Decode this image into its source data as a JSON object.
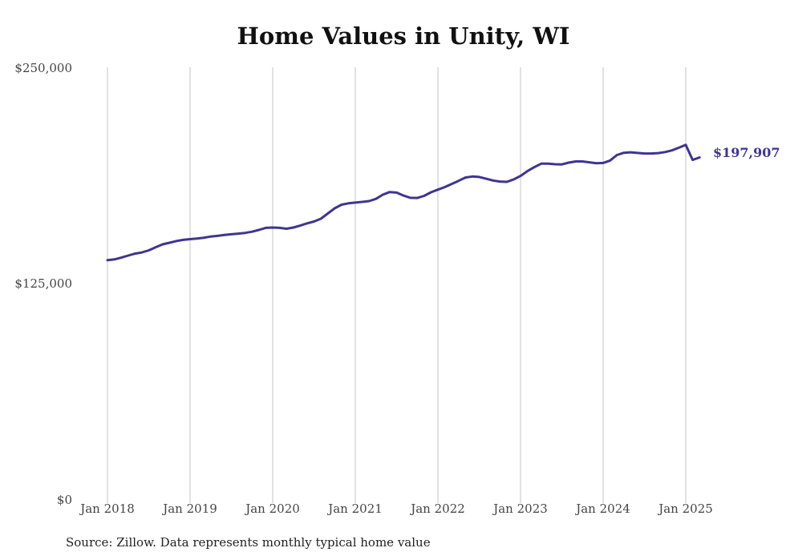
{
  "chart_data": {
    "type": "line",
    "title": "Home Values in Unity, WI",
    "y_ticks": [
      "$250,000",
      "$125,000",
      "$0"
    ],
    "x_ticks": [
      "Jan 2018",
      "Jan 2019",
      "Jan 2020",
      "Jan 2021",
      "Jan 2022",
      "Jan 2023",
      "Jan 2024",
      "Jan 2025"
    ],
    "ylim": [
      0,
      250000
    ],
    "xlim": [
      "2018-01",
      "2025-03"
    ],
    "grid": "vertical",
    "series": [
      {
        "color": "#3e3594",
        "end_label": "$197,907",
        "x": [
          "2018-01",
          "2018-02",
          "2018-03",
          "2018-04",
          "2018-05",
          "2018-06",
          "2018-07",
          "2018-08",
          "2018-09",
          "2018-10",
          "2018-11",
          "2018-12",
          "2019-01",
          "2019-02",
          "2019-03",
          "2019-04",
          "2019-05",
          "2019-06",
          "2019-07",
          "2019-08",
          "2019-09",
          "2019-10",
          "2019-11",
          "2019-12",
          "2020-01",
          "2020-02",
          "2020-03",
          "2020-04",
          "2020-05",
          "2020-06",
          "2020-07",
          "2020-08",
          "2020-09",
          "2020-10",
          "2020-11",
          "2020-12",
          "2021-01",
          "2021-02",
          "2021-03",
          "2021-04",
          "2021-05",
          "2021-06",
          "2021-07",
          "2021-08",
          "2021-09",
          "2021-10",
          "2021-11",
          "2021-12",
          "2022-01",
          "2022-02",
          "2022-03",
          "2022-04",
          "2022-05",
          "2022-06",
          "2022-07",
          "2022-08",
          "2022-09",
          "2022-10",
          "2022-11",
          "2022-12",
          "2023-01",
          "2023-02",
          "2023-03",
          "2023-04",
          "2023-05",
          "2023-06",
          "2023-07",
          "2023-08",
          "2023-09",
          "2023-10",
          "2023-11",
          "2023-12",
          "2024-01",
          "2024-02",
          "2024-03",
          "2024-04",
          "2024-05",
          "2024-06",
          "2024-07",
          "2024-08",
          "2024-09",
          "2024-10",
          "2024-11",
          "2024-12",
          "2025-01",
          "2025-02",
          "2025-03"
        ],
        "values": [
          138500,
          139000,
          140000,
          141200,
          142300,
          143000,
          144200,
          146000,
          147700,
          148600,
          149600,
          150300,
          150700,
          151000,
          151500,
          152200,
          152600,
          153100,
          153500,
          153900,
          154300,
          155000,
          156000,
          157200,
          157400,
          157200,
          156700,
          157400,
          158500,
          159800,
          160900,
          162500,
          165500,
          168500,
          170600,
          171400,
          171800,
          172200,
          172700,
          174000,
          176400,
          177900,
          177600,
          175900,
          174600,
          174500,
          175700,
          177800,
          179300,
          180800,
          182600,
          184400,
          186300,
          186900,
          186600,
          185600,
          184600,
          184000,
          183800,
          185200,
          187200,
          190000,
          192300,
          194300,
          194300,
          194000,
          193900,
          194900,
          195600,
          195600,
          195100,
          194600,
          194700,
          196100,
          199300,
          200600,
          200900,
          200500,
          200200,
          200200,
          200400,
          201000,
          202000,
          203500,
          205200,
          196500,
          197907
        ]
      }
    ]
  },
  "source_text": "Source: Zillow. Data represents monthly typical home value"
}
